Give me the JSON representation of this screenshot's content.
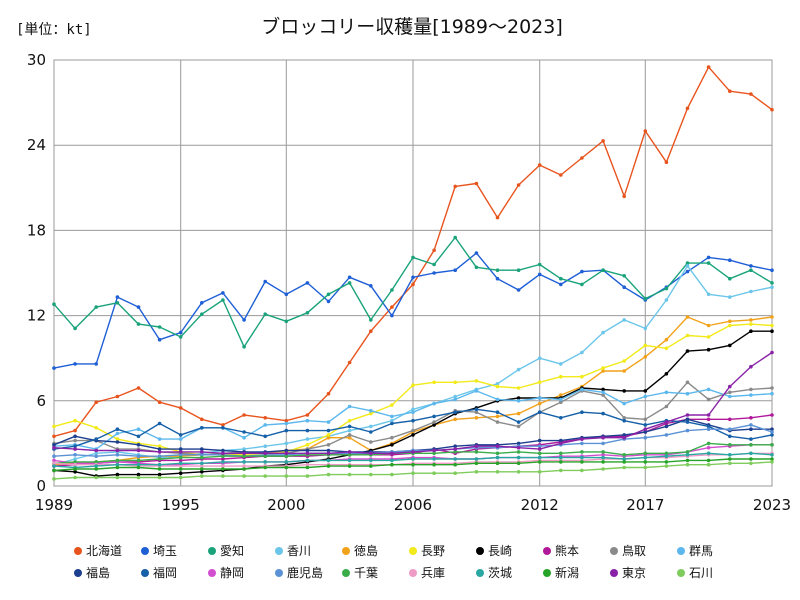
{
  "chart_data": {
    "type": "line",
    "title": "ブロッコリー収穫量[1989～2023]",
    "unit": "[単位：kt]",
    "x_ticks": [
      "1989",
      "1995",
      "2000",
      "2006",
      "2012",
      "2017",
      "2023"
    ],
    "y_ticks": [
      "0",
      "6",
      "12",
      "18",
      "24",
      "30"
    ],
    "xlim": [
      1989,
      2023
    ],
    "ylim": [
      0,
      30
    ],
    "grid": true,
    "legend_position": "bottom",
    "x": [
      1989,
      1990,
      1991,
      1992,
      1993,
      1994,
      1995,
      1996,
      1997,
      1998,
      1999,
      2000,
      2001,
      2002,
      2003,
      2004,
      2005,
      2006,
      2007,
      2008,
      2009,
      2010,
      2011,
      2012,
      2013,
      2014,
      2015,
      2016,
      2017,
      2018,
      2019,
      2020,
      2021,
      2022,
      2023
    ],
    "series": [
      {
        "name": "北海道",
        "color": "#e8541e",
        "values": [
          3.5,
          3.9,
          5.9,
          6.3,
          6.9,
          5.9,
          5.5,
          4.7,
          4.3,
          5.0,
          4.8,
          4.6,
          5.0,
          6.5,
          8.7,
          10.9,
          12.6,
          14.2,
          16.6,
          21.1,
          21.3,
          18.9,
          21.2,
          22.6,
          21.9,
          23.1,
          24.3,
          20.4,
          25.0,
          22.8,
          26.6,
          29.5,
          27.8,
          27.6,
          26.5
        ]
      },
      {
        "name": "埼玉",
        "color": "#1f5fd6",
        "values": [
          8.3,
          8.6,
          8.6,
          13.3,
          12.6,
          10.3,
          10.8,
          12.9,
          13.6,
          11.7,
          14.4,
          13.5,
          14.3,
          13.0,
          14.7,
          14.1,
          12.0,
          14.7,
          15.0,
          15.2,
          16.4,
          14.6,
          13.8,
          14.9,
          14.2,
          15.1,
          15.2,
          14.0,
          13.1,
          14.0,
          15.1,
          16.1,
          15.9,
          15.5,
          15.2
        ]
      },
      {
        "name": "愛知",
        "color": "#1aa37a",
        "values": [
          12.8,
          11.1,
          12.6,
          12.9,
          11.4,
          11.2,
          10.5,
          12.1,
          13.1,
          9.8,
          12.1,
          11.6,
          12.2,
          13.5,
          14.3,
          11.7,
          13.8,
          16.1,
          15.6,
          17.5,
          15.4,
          15.2,
          15.2,
          15.6,
          14.6,
          14.2,
          15.2,
          14.8,
          13.2,
          13.9,
          15.7,
          15.7,
          14.6,
          15.2,
          14.3
        ]
      },
      {
        "name": "香川",
        "color": "#6cc6ea",
        "values": [
          1.5,
          1.9,
          2.3,
          2.4,
          2.2,
          2.0,
          2.1,
          2.3,
          2.5,
          2.6,
          2.8,
          3.0,
          3.3,
          3.5,
          3.9,
          4.2,
          4.6,
          5.4,
          5.8,
          6.3,
          6.8,
          7.2,
          8.2,
          9.0,
          8.6,
          9.4,
          10.8,
          11.7,
          11.1,
          13.1,
          15.5,
          13.5,
          13.3,
          13.7,
          14.0
        ]
      },
      {
        "name": "徳島",
        "color": "#f2a21a",
        "values": [
          1.5,
          1.6,
          1.7,
          1.8,
          2.0,
          2.1,
          2.1,
          2.2,
          2.2,
          2.3,
          2.3,
          2.5,
          2.6,
          3.4,
          3.4,
          2.5,
          3.0,
          3.8,
          4.3,
          4.7,
          4.8,
          4.9,
          5.1,
          5.8,
          6.4,
          7.0,
          8.1,
          8.1,
          9.1,
          10.3,
          11.9,
          11.3,
          11.6,
          11.7,
          11.9
        ]
      },
      {
        "name": "長野",
        "color": "#f2ea1a",
        "values": [
          4.2,
          4.6,
          4.1,
          3.3,
          3.0,
          2.8,
          2.4,
          2.2,
          2.2,
          2.2,
          2.2,
          2.4,
          2.9,
          3.6,
          4.6,
          5.1,
          5.7,
          7.1,
          7.3,
          7.3,
          7.4,
          7.0,
          6.9,
          7.3,
          7.7,
          7.7,
          8.3,
          8.8,
          9.9,
          9.7,
          10.6,
          10.5,
          11.3,
          11.4,
          11.3
        ]
      },
      {
        "name": "長崎",
        "color": "#000000",
        "values": [
          1.1,
          1.0,
          0.7,
          0.8,
          0.8,
          0.8,
          0.9,
          1.0,
          1.1,
          1.2,
          1.4,
          1.5,
          1.7,
          1.9,
          2.2,
          2.5,
          2.9,
          3.6,
          4.3,
          5.1,
          5.5,
          6.0,
          6.2,
          6.2,
          6.2,
          6.9,
          6.8,
          6.7,
          6.7,
          7.9,
          9.5,
          9.6,
          9.9,
          10.9,
          10.9
        ]
      },
      {
        "name": "熊本",
        "color": "#b0199a",
        "values": [
          1.4,
          1.5,
          1.6,
          1.7,
          1.7,
          1.8,
          1.8,
          1.9,
          1.9,
          2.0,
          2.1,
          2.1,
          2.1,
          2.2,
          2.2,
          2.2,
          2.2,
          2.3,
          2.6,
          2.3,
          2.6,
          2.7,
          2.8,
          2.9,
          3.1,
          3.3,
          3.5,
          3.5,
          3.8,
          4.4,
          4.7,
          4.7,
          4.7,
          4.8,
          5.0
        ]
      },
      {
        "name": "鳥取",
        "color": "#8a8a8a",
        "values": [
          3.0,
          3.2,
          3.2,
          2.6,
          2.6,
          2.4,
          2.3,
          2.2,
          2.3,
          2.4,
          2.3,
          2.3,
          2.6,
          2.9,
          3.6,
          3.1,
          3.4,
          3.9,
          4.5,
          5.3,
          5.2,
          4.5,
          4.2,
          5.2,
          5.9,
          6.7,
          6.4,
          4.8,
          4.7,
          5.6,
          7.3,
          6.1,
          6.6,
          6.8,
          6.9
        ]
      },
      {
        "name": "群馬",
        "color": "#5cb8ec",
        "values": [
          2.8,
          2.9,
          2.6,
          3.7,
          4.0,
          3.3,
          3.3,
          4.1,
          4.1,
          3.4,
          4.3,
          4.4,
          4.6,
          4.5,
          5.6,
          5.3,
          4.9,
          5.2,
          5.8,
          6.1,
          6.7,
          6.1,
          6.0,
          6.2,
          6.1,
          6.8,
          6.6,
          5.8,
          6.3,
          6.6,
          6.5,
          6.8,
          6.3,
          6.4,
          6.5
        ]
      },
      {
        "name": "福島",
        "color": "#1d3f8f",
        "values": [
          2.9,
          3.5,
          3.2,
          3.1,
          2.9,
          2.6,
          2.6,
          2.6,
          2.5,
          2.4,
          2.4,
          2.5,
          2.5,
          2.5,
          2.4,
          2.4,
          2.4,
          2.5,
          2.6,
          2.8,
          2.9,
          2.9,
          3.0,
          3.2,
          3.2,
          3.4,
          3.5,
          3.6,
          3.8,
          4.2,
          4.7,
          4.3,
          3.9,
          4.0,
          4.0
        ]
      },
      {
        "name": "福岡",
        "color": "#1660a8",
        "values": [
          2.6,
          2.8,
          3.3,
          4.0,
          3.5,
          4.4,
          3.6,
          4.1,
          4.1,
          3.8,
          3.5,
          3.9,
          3.9,
          3.9,
          4.2,
          3.8,
          4.4,
          4.6,
          4.9,
          5.2,
          5.4,
          5.2,
          4.5,
          5.2,
          4.8,
          5.2,
          5.1,
          4.6,
          4.3,
          4.6,
          4.5,
          4.2,
          3.5,
          3.3,
          3.6
        ]
      },
      {
        "name": "静岡",
        "color": "#d14fcf",
        "values": [
          1.8,
          1.6,
          1.6,
          1.7,
          1.6,
          1.5,
          1.5,
          1.6,
          1.6,
          1.7,
          1.7,
          1.7,
          1.8,
          1.8,
          1.9,
          1.9,
          1.9,
          2.0,
          2.0,
          1.9,
          1.9,
          2.0,
          2.0,
          2.0,
          2.1,
          2.1,
          2.2,
          2.1,
          2.2,
          2.2,
          2.4,
          2.7,
          2.8,
          2.9,
          2.9
        ]
      },
      {
        "name": "鹿児島",
        "color": "#5b92d6",
        "values": [
          2.1,
          2.2,
          2.1,
          2.2,
          2.1,
          2.1,
          2.2,
          2.2,
          2.2,
          2.1,
          2.2,
          2.2,
          2.3,
          2.3,
          2.3,
          2.3,
          2.4,
          2.5,
          2.5,
          2.6,
          2.7,
          2.7,
          2.8,
          2.8,
          2.9,
          3.0,
          3.0,
          3.3,
          3.4,
          3.6,
          3.9,
          4.0,
          4.0,
          4.3,
          3.8
        ]
      },
      {
        "name": "千葉",
        "color": "#3aac4a",
        "values": [
          1.6,
          1.7,
          1.7,
          1.8,
          1.8,
          1.9,
          2.0,
          2.0,
          2.1,
          2.1,
          2.1,
          2.1,
          2.2,
          2.2,
          2.2,
          2.2,
          2.3,
          2.3,
          2.3,
          2.4,
          2.4,
          2.3,
          2.4,
          2.3,
          2.3,
          2.4,
          2.4,
          2.2,
          2.3,
          2.3,
          2.4,
          3.0,
          2.9,
          2.9,
          2.9
        ]
      },
      {
        "name": "兵庫",
        "color": "#ee9cc6",
        "values": [
          1.6,
          1.5,
          1.5,
          1.5,
          1.4,
          1.4,
          1.4,
          1.4,
          1.4,
          1.4,
          1.4,
          1.4,
          1.5,
          1.5,
          1.5,
          1.5,
          1.5,
          1.6,
          1.6,
          1.6,
          1.7,
          1.7,
          1.7,
          1.8,
          1.8,
          1.8,
          1.9,
          1.9,
          2.0,
          2.0,
          2.1,
          2.2,
          2.2,
          2.3,
          2.3
        ]
      },
      {
        "name": "茨城",
        "color": "#2aa7a2",
        "values": [
          1.4,
          1.3,
          1.4,
          1.5,
          1.5,
          1.5,
          1.6,
          1.6,
          1.7,
          1.7,
          1.7,
          1.7,
          1.8,
          1.8,
          1.8,
          1.8,
          1.8,
          1.9,
          1.9,
          1.9,
          1.9,
          2.0,
          2.0,
          2.0,
          2.0,
          2.0,
          2.0,
          1.9,
          2.0,
          2.1,
          2.2,
          2.3,
          2.2,
          2.3,
          2.2
        ]
      },
      {
        "name": "新潟",
        "color": "#27a427",
        "values": [
          1.1,
          1.2,
          1.2,
          1.3,
          1.3,
          1.2,
          1.2,
          1.2,
          1.2,
          1.2,
          1.3,
          1.3,
          1.3,
          1.4,
          1.4,
          1.4,
          1.5,
          1.5,
          1.5,
          1.5,
          1.6,
          1.6,
          1.6,
          1.7,
          1.7,
          1.7,
          1.7,
          1.7,
          1.7,
          1.7,
          1.8,
          1.8,
          1.9,
          1.9,
          1.9
        ]
      },
      {
        "name": "東京",
        "color": "#8a22a8",
        "values": [
          2.7,
          2.6,
          2.5,
          2.5,
          2.5,
          2.4,
          2.4,
          2.4,
          2.3,
          2.3,
          2.3,
          2.3,
          2.3,
          2.3,
          2.4,
          2.3,
          2.3,
          2.4,
          2.5,
          2.6,
          2.8,
          2.8,
          2.7,
          2.6,
          3.0,
          3.3,
          3.4,
          3.4,
          4.0,
          4.5,
          5.0,
          5.0,
          7.0,
          8.4,
          9.4
        ]
      },
      {
        "name": "石川",
        "color": "#7fcc5c",
        "values": [
          0.5,
          0.6,
          0.6,
          0.6,
          0.6,
          0.6,
          0.6,
          0.7,
          0.7,
          0.7,
          0.7,
          0.7,
          0.7,
          0.8,
          0.8,
          0.8,
          0.8,
          0.9,
          0.9,
          0.9,
          1.0,
          1.0,
          1.0,
          1.0,
          1.1,
          1.1,
          1.2,
          1.3,
          1.3,
          1.4,
          1.5,
          1.5,
          1.6,
          1.6,
          1.7
        ]
      }
    ]
  }
}
